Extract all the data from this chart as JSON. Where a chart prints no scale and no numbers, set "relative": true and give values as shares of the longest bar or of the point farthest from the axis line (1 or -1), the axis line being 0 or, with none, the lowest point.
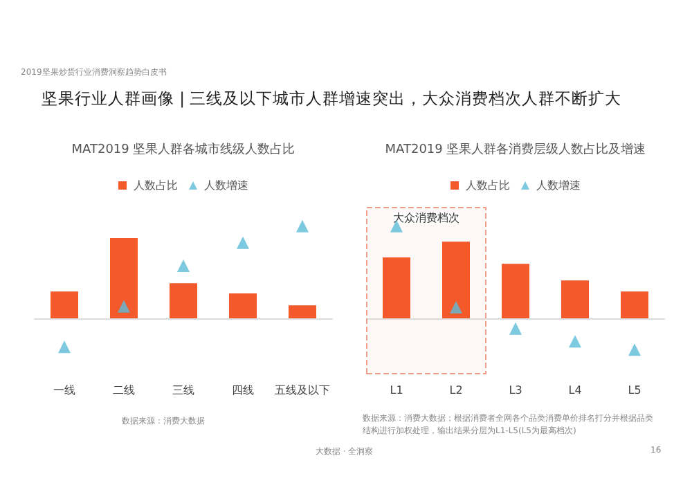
{
  "chart_data": [
    {
      "type": "bar",
      "title": "坚果行业人群画像 | 三线及以下城市人群增速突出，大众消费档次人群不断扩大",
      "subtitle": "MAT2019 坚果人群各城市线级人数占比",
      "relative": true,
      "legend": "top",
      "grid": false,
      "categories": [
        "一线",
        "二线",
        "三线",
        "四线",
        "五线及以下"
      ],
      "series": [
        {
          "name": "人数占比",
          "color": "#f4592b",
          "values": [
            0.29,
            0.87,
            0.38,
            0.27,
            0.14
          ]
        },
        {
          "name": "人数增速",
          "type": "scatter",
          "marker": "triangle",
          "color": "#5bbcd8",
          "values": [
            -0.31,
            0.13,
            0.57,
            0.82,
            1
          ]
        }
      ],
      "annotations": [
        "2019坚果炒货行业消费洞察趋势白皮书",
        "数据来源：消费大数据"
      ]
    },
    {
      "type": "bar",
      "subtitle": "MAT2019 坚果人群各消费层级人数占比及增速",
      "relative": true,
      "legend": "top",
      "grid": false,
      "categories": [
        "L1",
        "L2",
        "L3",
        "L4",
        "L5"
      ],
      "series": [
        {
          "name": "人数占比",
          "color": "#f4592b",
          "values": [
            0.66,
            0.83,
            0.59,
            0.41,
            0.29
          ]
        },
        {
          "name": "人数增速",
          "type": "scatter",
          "marker": "triangle",
          "color": "#5bbcd8",
          "values": [
            1,
            0.12,
            -0.11,
            -0.25,
            -0.34
          ]
        }
      ],
      "bands": [
        {
          "axis": "x",
          "from": "L1",
          "to": "L2",
          "label": "大众消费档次",
          "color": "#eda08c"
        }
      ],
      "annotations": [
        "数据来源：消费大数据；根据消费者全网各个品类消费单价排名打分并根据品类结构进行加权处理，输出结果分层为L1-L5(L5为最高档次)",
        "大数据 · 全洞察",
        "16"
      ]
    }
  ]
}
